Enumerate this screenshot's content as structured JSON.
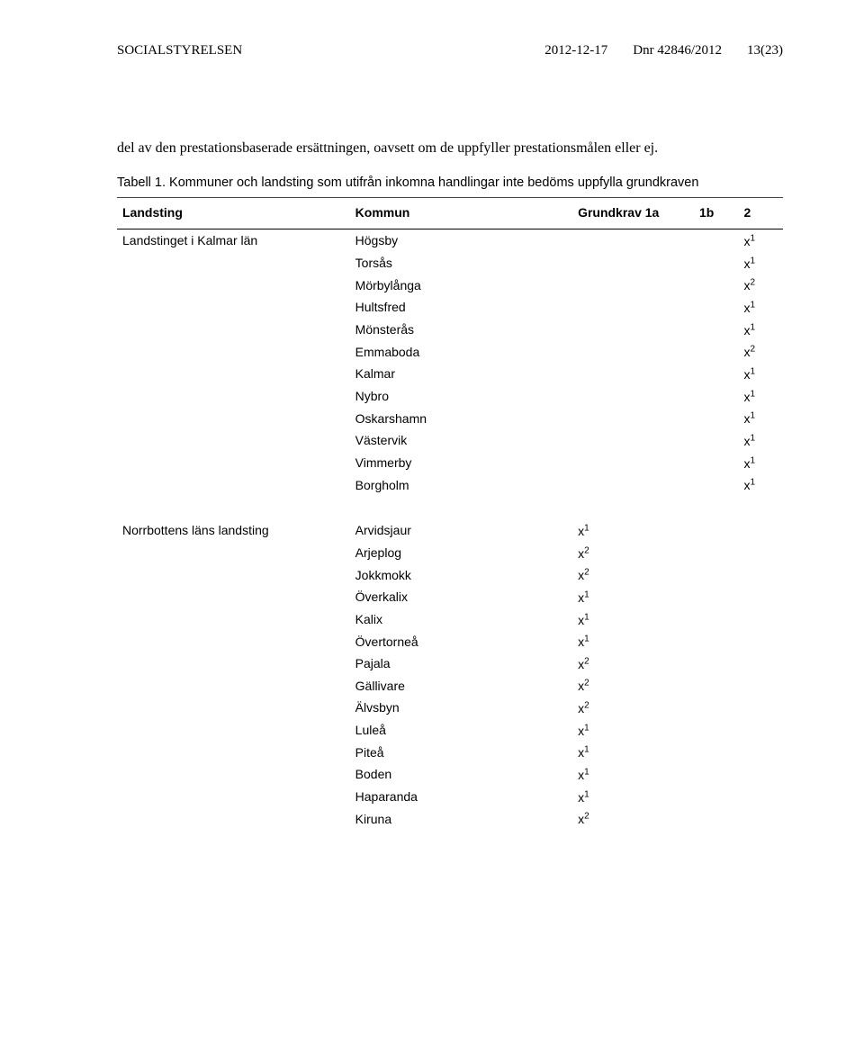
{
  "header": {
    "org": "SOCIALSTYRELSEN",
    "date": "2012-12-17",
    "dnr": "Dnr 42846/2012",
    "page": "13(23)"
  },
  "intro": "del av den prestationsbaserade ersättningen, oavsett om de uppfyller prestationsmålen eller ej.",
  "caption": {
    "label": "Tabell 1.",
    "text": "Kommuner och landsting som utifrån inkomna handlingar inte bedöms uppfylla grundkraven"
  },
  "columns": {
    "a": "Landsting",
    "b": "Kommun",
    "c": "Grundkrav 1a",
    "d": "1b",
    "e": "2"
  },
  "groups": [
    {
      "landsting": "Landstinget i Kalmar län",
      "rows": [
        {
          "kommun": "Högsby",
          "col": "e",
          "sup": "1"
        },
        {
          "kommun": "Torsås",
          "col": "e",
          "sup": "1"
        },
        {
          "kommun": "Mörbylånga",
          "col": "e",
          "sup": "2"
        },
        {
          "kommun": "Hultsfred",
          "col": "e",
          "sup": "1"
        },
        {
          "kommun": "Mönsterås",
          "col": "e",
          "sup": "1"
        },
        {
          "kommun": "Emmaboda",
          "col": "e",
          "sup": "2"
        },
        {
          "kommun": "Kalmar",
          "col": "e",
          "sup": "1"
        },
        {
          "kommun": "Nybro",
          "col": "e",
          "sup": "1"
        },
        {
          "kommun": "Oskarshamn",
          "col": "e",
          "sup": "1"
        },
        {
          "kommun": "Västervik",
          "col": "e",
          "sup": "1"
        },
        {
          "kommun": "Vimmerby",
          "col": "e",
          "sup": "1"
        },
        {
          "kommun": "Borgholm",
          "col": "e",
          "sup": "1"
        }
      ]
    },
    {
      "landsting": "Norrbottens läns landsting",
      "rows": [
        {
          "kommun": "Arvidsjaur",
          "col": "c",
          "sup": "1"
        },
        {
          "kommun": "Arjeplog",
          "col": "c",
          "sup": "2"
        },
        {
          "kommun": "Jokkmokk",
          "col": "c",
          "sup": "2"
        },
        {
          "kommun": "Överkalix",
          "col": "c",
          "sup": "1"
        },
        {
          "kommun": "Kalix",
          "col": "c",
          "sup": "1"
        },
        {
          "kommun": "Övertorneå",
          "col": "c",
          "sup": "1"
        },
        {
          "kommun": "Pajala",
          "col": "c",
          "sup": "2"
        },
        {
          "kommun": "Gällivare",
          "col": "c",
          "sup": "2"
        },
        {
          "kommun": "Älvsbyn",
          "col": "c",
          "sup": "2"
        },
        {
          "kommun": "Luleå",
          "col": "c",
          "sup": "1"
        },
        {
          "kommun": "Piteå",
          "col": "c",
          "sup": "1"
        },
        {
          "kommun": "Boden",
          "col": "c",
          "sup": "1"
        },
        {
          "kommun": "Haparanda",
          "col": "c",
          "sup": "1"
        },
        {
          "kommun": "Kiruna",
          "col": "c",
          "sup": "2"
        }
      ]
    }
  ]
}
